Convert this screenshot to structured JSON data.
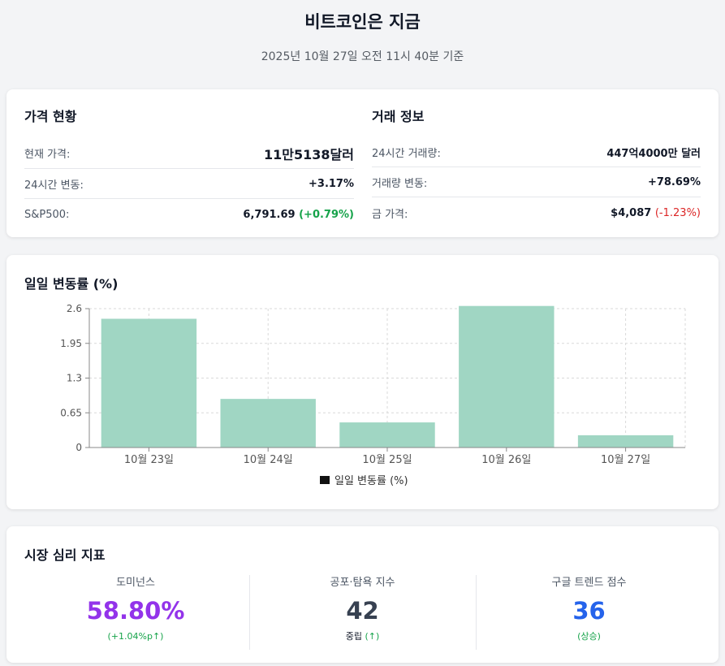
{
  "header": {
    "title": "비트코인은 지금",
    "subtitle": "2025년 10월 27일 오전 11시 40분 기준"
  },
  "price_status": {
    "title": "가격 현황",
    "rows": [
      {
        "label": "현재 가격:",
        "value": "11만5138달러"
      },
      {
        "label": "24시간 변동:",
        "value": "+3.17%"
      },
      {
        "label": "S&P500:",
        "value": "6,791.69",
        "change": "(+0.79%)"
      }
    ]
  },
  "trade_info": {
    "title": "거래 정보",
    "rows": [
      {
        "label": "24시간 거래량:",
        "value": "447억4000만 달러"
      },
      {
        "label": "거래량 변동:",
        "value": "+78.69%"
      },
      {
        "label": "금 가격:",
        "value": "$4,087",
        "change": "(-1.23%)"
      }
    ]
  },
  "colors": {
    "positive": "#16a34a",
    "negative": "#dc2626",
    "bar": "#a0d6c3",
    "dominance": "#9333ea",
    "fear_greed": "#374151",
    "google_trend": "#2563eb"
  },
  "chart_section": {
    "title": "일일 변동률 (%)"
  },
  "chart_data": {
    "type": "bar",
    "categories": [
      "10월 23일",
      "10월 24일",
      "10월 25일",
      "10월 26일",
      "10월 27일"
    ],
    "series": [
      {
        "name": "일일 변동률 (%)",
        "values": [
          2.41,
          0.91,
          0.47,
          2.65,
          0.23
        ]
      }
    ],
    "yticks": [
      "0",
      "0.65",
      "1.3",
      "1.95",
      "2.6"
    ],
    "ylim": [
      0,
      2.6
    ],
    "grid": true,
    "legend": "bottom-center"
  },
  "sentiment": {
    "title": "시장 심리 지표",
    "metrics": [
      {
        "label": "도미넌스",
        "value": "58.80%",
        "sub": "(+1.04%p↑)"
      },
      {
        "label": "공포·탐욕 지수",
        "value": "42",
        "sub_state": "중립",
        "sub_arrow": "(↑)"
      },
      {
        "label": "구글 트렌드 점수",
        "value": "36",
        "sub": "(상승)"
      }
    ]
  }
}
